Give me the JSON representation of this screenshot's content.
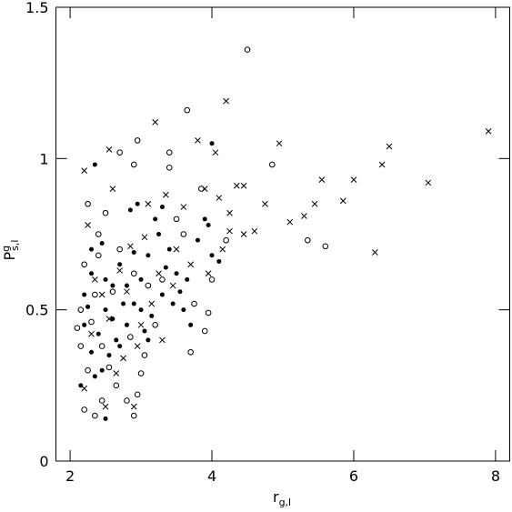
{
  "chart_data": {
    "type": "scatter",
    "x_label": {
      "main": "r",
      "sub": "g,l"
    },
    "y_label": {
      "main": "P",
      "sup": "g",
      "sub": "s,l"
    },
    "xlim": [
      1.8,
      8.2
    ],
    "ylim": [
      0,
      1.5
    ],
    "xticks": [
      2,
      4,
      6,
      8
    ],
    "yticks": [
      0,
      0.5,
      1,
      1.5
    ],
    "series": [
      {
        "marker": "cross",
        "color": "#000000",
        "x": [
          2.2,
          2.55,
          3.2,
          4.2,
          4.35,
          4.6,
          4.75,
          4.95,
          5.1,
          5.3,
          5.45,
          5.55,
          5.85,
          6.0,
          6.3,
          6.4,
          6.5,
          7.05,
          7.9,
          3.8,
          4.05,
          3.9,
          4.1,
          4.25,
          4.45,
          4.25,
          3.6,
          3.3,
          2.9,
          2.5,
          2.2,
          2.3,
          2.45,
          2.7,
          2.85,
          3.0,
          3.1,
          3.35,
          3.5,
          3.7,
          2.6,
          2.35,
          2.25,
          3.95,
          4.15,
          3.45,
          2.75,
          2.95,
          3.15,
          2.55,
          4.45,
          3.25,
          3.05,
          2.65,
          2.8
        ],
        "y": [
          0.96,
          1.03,
          1.12,
          1.19,
          0.91,
          0.76,
          0.85,
          1.05,
          0.79,
          0.81,
          0.85,
          0.93,
          0.86,
          0.93,
          0.69,
          0.98,
          1.04,
          0.92,
          1.09,
          1.06,
          1.02,
          0.9,
          0.87,
          0.82,
          0.75,
          0.76,
          0.84,
          0.4,
          0.18,
          0.18,
          0.24,
          0.42,
          0.55,
          0.63,
          0.71,
          0.45,
          0.85,
          0.88,
          0.7,
          0.65,
          0.9,
          0.6,
          0.78,
          0.62,
          0.7,
          0.58,
          0.34,
          0.38,
          0.52,
          0.47,
          0.91,
          0.62,
          0.74,
          0.29,
          0.56
        ]
      },
      {
        "marker": "open",
        "color": "#000000",
        "x": [
          4.5,
          3.65,
          2.95,
          2.9,
          3.4,
          3.4,
          2.7,
          4.85,
          5.35,
          5.6,
          2.2,
          2.35,
          2.45,
          2.65,
          2.8,
          2.9,
          2.95,
          3.0,
          3.7,
          3.9,
          3.95,
          2.15,
          2.2,
          2.25,
          2.4,
          2.5,
          2.3,
          2.45,
          2.6,
          2.85,
          3.1,
          3.3,
          3.6,
          3.85,
          4.0,
          4.2,
          3.2,
          2.7,
          2.15,
          2.55,
          3.5,
          2.35,
          2.1,
          2.25,
          3.75,
          2.9,
          3.05,
          2.4
        ],
        "y": [
          1.36,
          1.16,
          1.06,
          0.98,
          1.02,
          0.97,
          1.02,
          0.98,
          0.73,
          0.71,
          0.17,
          0.15,
          0.2,
          0.25,
          0.2,
          0.15,
          0.22,
          0.29,
          0.36,
          0.43,
          0.49,
          0.5,
          0.65,
          0.85,
          0.75,
          0.82,
          0.46,
          0.38,
          0.56,
          0.41,
          0.58,
          0.6,
          0.75,
          0.9,
          0.6,
          0.73,
          0.45,
          0.7,
          0.38,
          0.31,
          0.8,
          0.55,
          0.44,
          0.3,
          0.52,
          0.62,
          0.35,
          0.68
        ]
      },
      {
        "marker": "filled",
        "color": "#000000",
        "x": [
          2.35,
          4.0,
          2.5,
          2.15,
          2.3,
          2.4,
          2.5,
          2.6,
          2.7,
          2.8,
          2.9,
          3.0,
          3.1,
          3.2,
          3.3,
          3.4,
          3.5,
          3.6,
          3.7,
          3.8,
          3.9,
          4.0,
          4.1,
          2.2,
          2.3,
          2.45,
          2.55,
          2.65,
          2.75,
          2.85,
          2.95,
          3.05,
          3.15,
          3.25,
          3.35,
          3.45,
          3.55,
          3.65,
          2.2,
          2.35,
          2.45,
          2.6,
          2.9,
          3.0,
          2.5,
          2.3,
          2.7,
          3.95,
          3.3,
          2.8,
          3.1,
          2.25
        ],
        "y": [
          0.98,
          1.05,
          0.14,
          0.25,
          0.36,
          0.42,
          0.5,
          0.58,
          0.65,
          0.45,
          0.52,
          0.6,
          0.68,
          0.8,
          0.55,
          0.7,
          0.62,
          0.5,
          0.45,
          0.73,
          0.8,
          0.68,
          0.66,
          0.55,
          0.62,
          0.72,
          0.35,
          0.4,
          0.52,
          0.83,
          0.85,
          0.43,
          0.48,
          0.75,
          0.64,
          0.52,
          0.56,
          0.6,
          0.45,
          0.28,
          0.3,
          0.47,
          0.69,
          0.5,
          0.6,
          0.7,
          0.38,
          0.78,
          0.84,
          0.58,
          0.4,
          0.51
        ]
      }
    ]
  }
}
